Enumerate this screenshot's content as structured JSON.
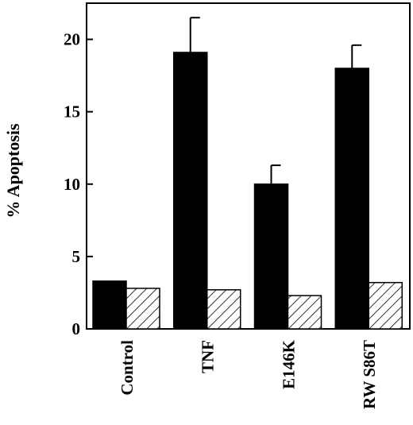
{
  "chart_data": {
    "type": "bar",
    "title": "",
    "xlabel": "",
    "ylabel": "% Apoptosis",
    "ylim": [
      0,
      22.5
    ],
    "yticks": [
      0,
      5,
      10,
      15,
      20
    ],
    "categories": [
      "Control",
      "TNF",
      "E146K",
      "RW S86T"
    ],
    "series": [
      {
        "fill": "solid",
        "color": "#000000",
        "values": [
          3.3,
          19.1,
          10.0,
          18.0
        ],
        "error": [
          0,
          2.4,
          1.3,
          1.6
        ]
      },
      {
        "fill": "hatched",
        "color": "#ffffff",
        "values": [
          2.8,
          2.7,
          2.3,
          3.2
        ],
        "error": [
          0,
          0,
          0,
          0
        ]
      }
    ],
    "grid": false,
    "legend": "none"
  }
}
